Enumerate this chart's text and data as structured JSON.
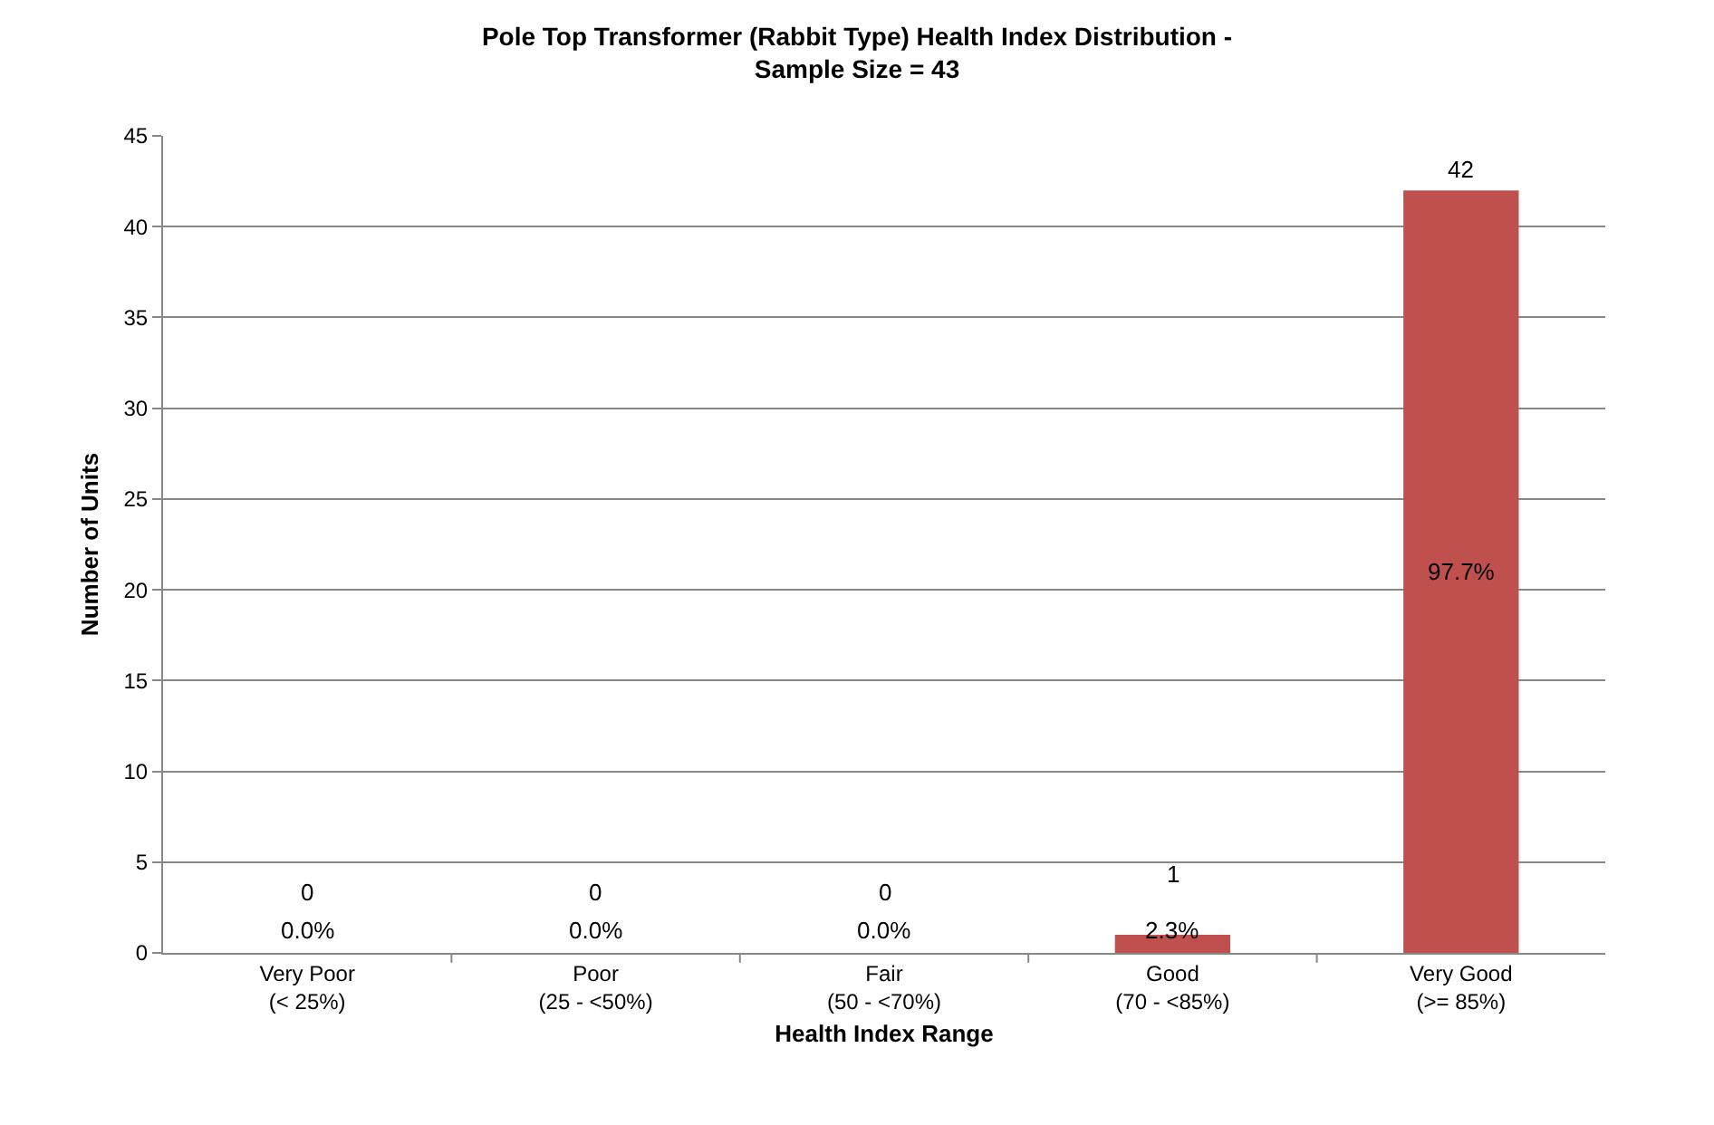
{
  "chart_data": {
    "type": "bar",
    "title": "Pole Top Transformer (Rabbit Type) Health Index Distribution -\nSample Size = 43",
    "xlabel": "Health Index Range",
    "ylabel": "Number of Units",
    "categories": [
      "Very Poor\n(< 25%)",
      "Poor\n(25 - <50%)",
      "Fair\n(50 - <70%)",
      "Good\n(70 - <85%)",
      "Very Good\n(>= 85%)"
    ],
    "values": [
      0,
      0,
      0,
      1,
      42
    ],
    "color": "#c0504d",
    "data_labels": true,
    "annotations": [
      "0.0%",
      "0.0%",
      "0.0%",
      "2.3%",
      "97.7%"
    ],
    "ylim": [
      0,
      45
    ],
    "yticks": [
      0,
      5,
      10,
      15,
      20,
      25,
      30,
      35,
      40,
      45
    ],
    "grid": "y",
    "legend": false
  }
}
